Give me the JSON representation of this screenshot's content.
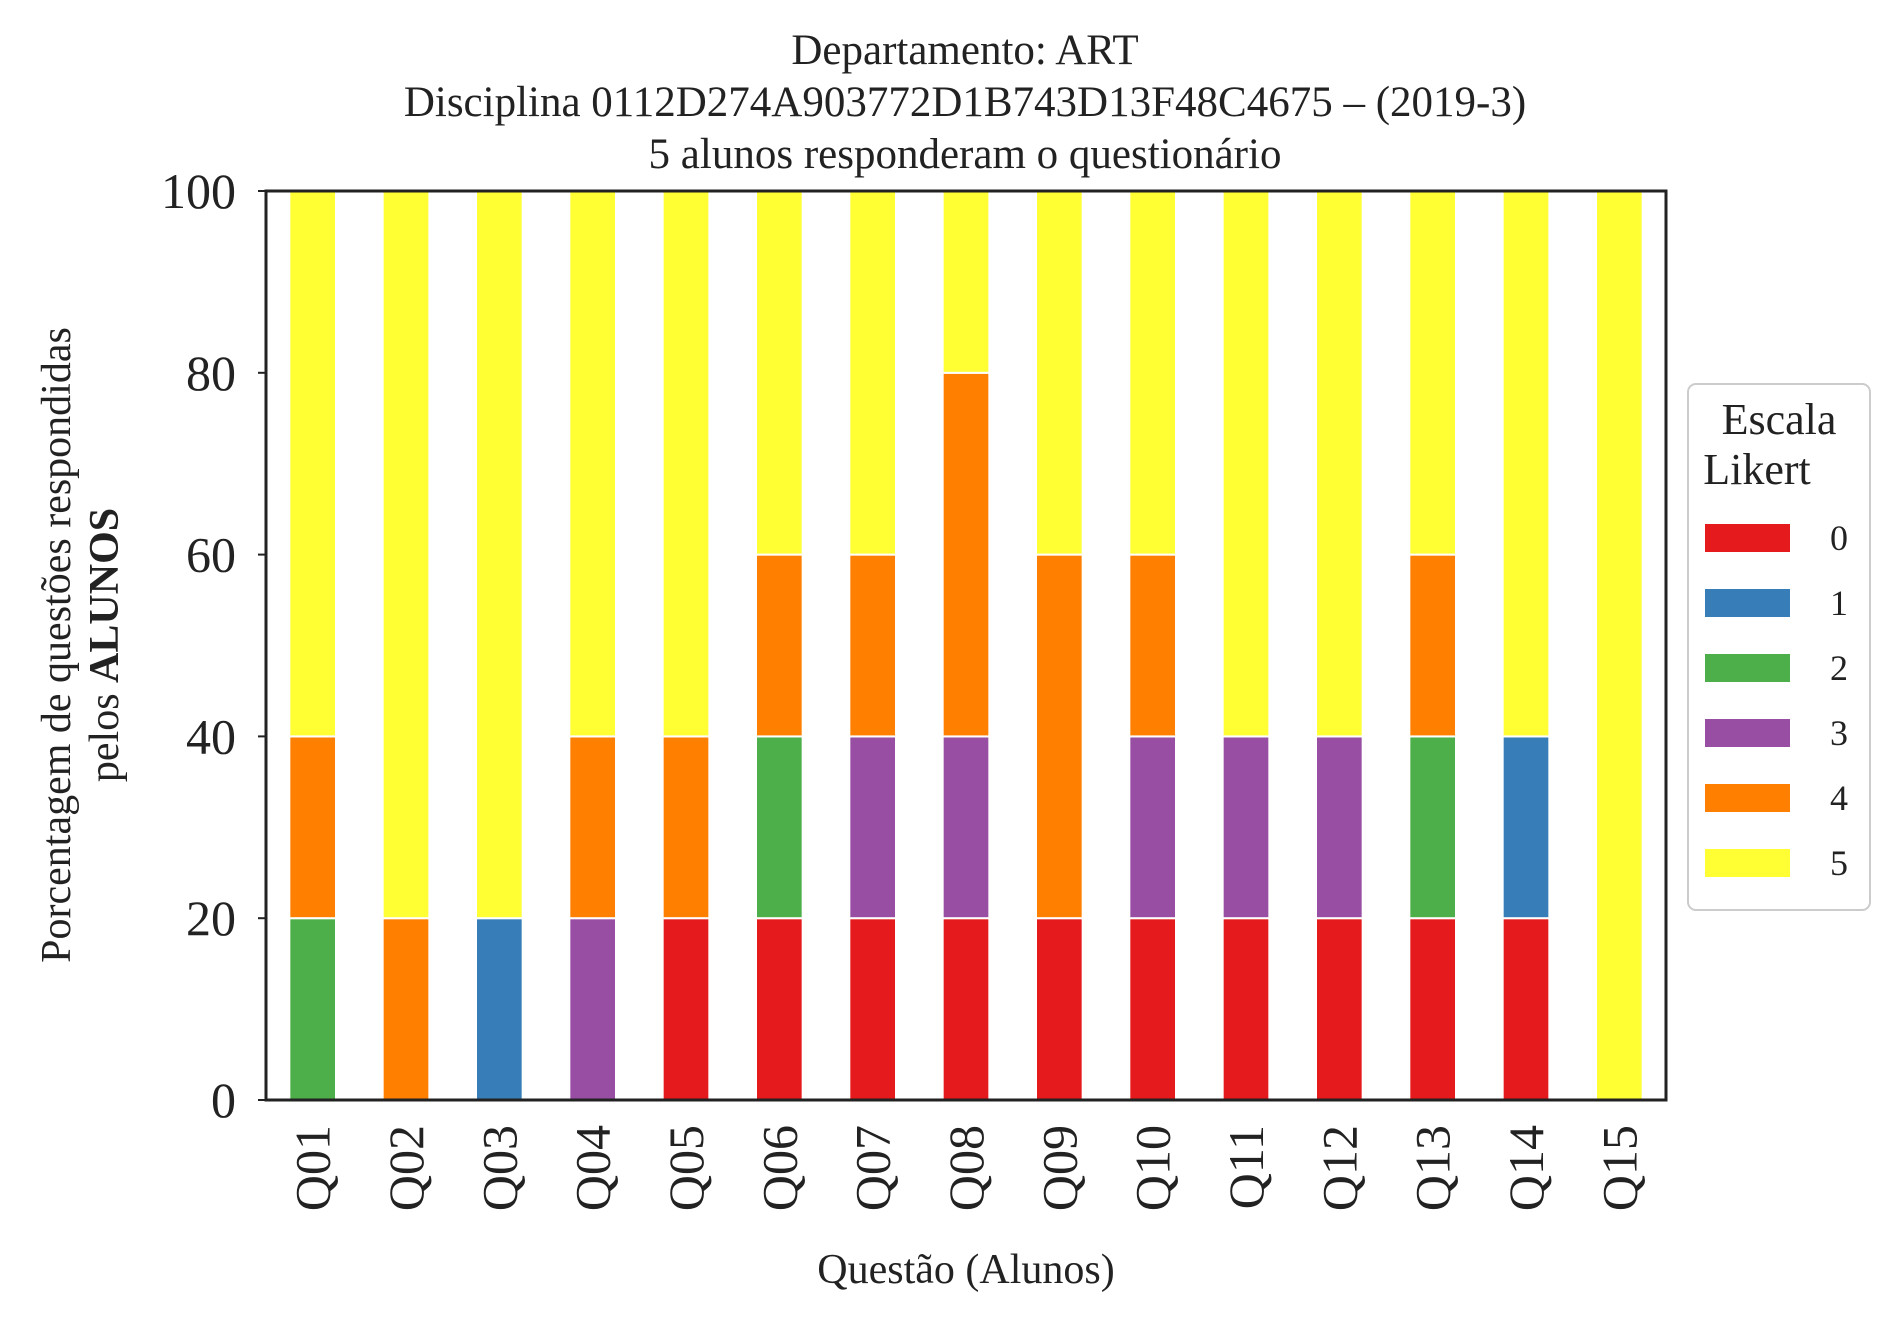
{
  "chart_data": {
    "type": "bar",
    "stacked": true,
    "title_lines": [
      "Departamento: ART",
      "Disciplina 0112D274A903772D1B743D13F48C4675 – (2019-3)",
      "5 alunos responderam o questionário"
    ],
    "xlabel": "Questão (Alunos)",
    "ylabel_line1": "Porcentagem de questões respondidas",
    "ylabel_line2_prefix": "pelos ",
    "ylabel_line2_bold": "ALUNOS",
    "ylim": [
      0,
      100
    ],
    "yticks": [
      "0",
      "20",
      "40",
      "60",
      "80",
      "100"
    ],
    "grid": false,
    "categories": [
      "Q01",
      "Q02",
      "Q03",
      "Q04",
      "Q05",
      "Q06",
      "Q07",
      "Q08",
      "Q09",
      "Q10",
      "Q11",
      "Q12",
      "Q13",
      "Q14",
      "Q15"
    ],
    "legend": {
      "title_line1": "Escala",
      "title_line2": "Likert",
      "placement": "center-right outside"
    },
    "series": [
      {
        "name": "0",
        "color": "#e41a1c",
        "values": [
          0,
          0,
          0,
          0,
          20,
          20,
          20,
          20,
          20,
          20,
          20,
          20,
          20,
          20,
          0
        ]
      },
      {
        "name": "1",
        "color": "#377eb8",
        "values": [
          0,
          0,
          20,
          0,
          0,
          0,
          0,
          0,
          0,
          0,
          0,
          0,
          0,
          20,
          0
        ]
      },
      {
        "name": "2",
        "color": "#4daf4a",
        "values": [
          20,
          0,
          0,
          0,
          0,
          20,
          0,
          0,
          0,
          0,
          0,
          0,
          20,
          0,
          0
        ]
      },
      {
        "name": "3",
        "color": "#984ea3",
        "values": [
          0,
          0,
          0,
          20,
          0,
          0,
          20,
          20,
          0,
          20,
          20,
          20,
          0,
          0,
          0
        ]
      },
      {
        "name": "4",
        "color": "#ff7f00",
        "values": [
          20,
          20,
          0,
          20,
          20,
          20,
          20,
          40,
          40,
          20,
          0,
          0,
          20,
          0,
          0
        ]
      },
      {
        "name": "5",
        "color": "#ffff33",
        "values": [
          60,
          80,
          80,
          60,
          60,
          40,
          40,
          20,
          40,
          40,
          60,
          60,
          40,
          60,
          100
        ]
      }
    ]
  }
}
